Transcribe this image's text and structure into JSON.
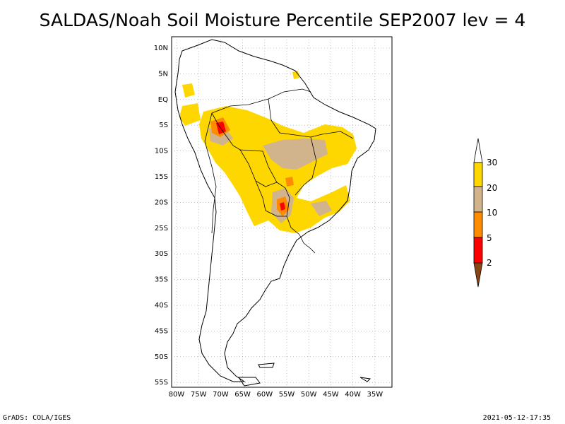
{
  "title": "SALDAS/Noah Soil Moisture Percentile SEP2007 lev = 4",
  "lat_labels": [
    "10N",
    "5N",
    "EQ",
    "5S",
    "10S",
    "15S",
    "20S",
    "25S",
    "30S",
    "35S",
    "40S",
    "45S",
    "50S",
    "55S"
  ],
  "lon_labels": [
    "80W",
    "75W",
    "70W",
    "65W",
    "60W",
    "55W",
    "50W",
    "45W",
    "40W",
    "35W"
  ],
  "legend": {
    "labels": [
      "30",
      "20",
      "10",
      "5",
      "2"
    ],
    "colors": [
      "#ffffff",
      "#ffd700",
      "#d2b48c",
      "#ff8c00",
      "#ff0000",
      "#8b4513"
    ]
  },
  "footer_left": "GrADS: COLA/IGES",
  "footer_right": "2021-05-12-17:35"
}
